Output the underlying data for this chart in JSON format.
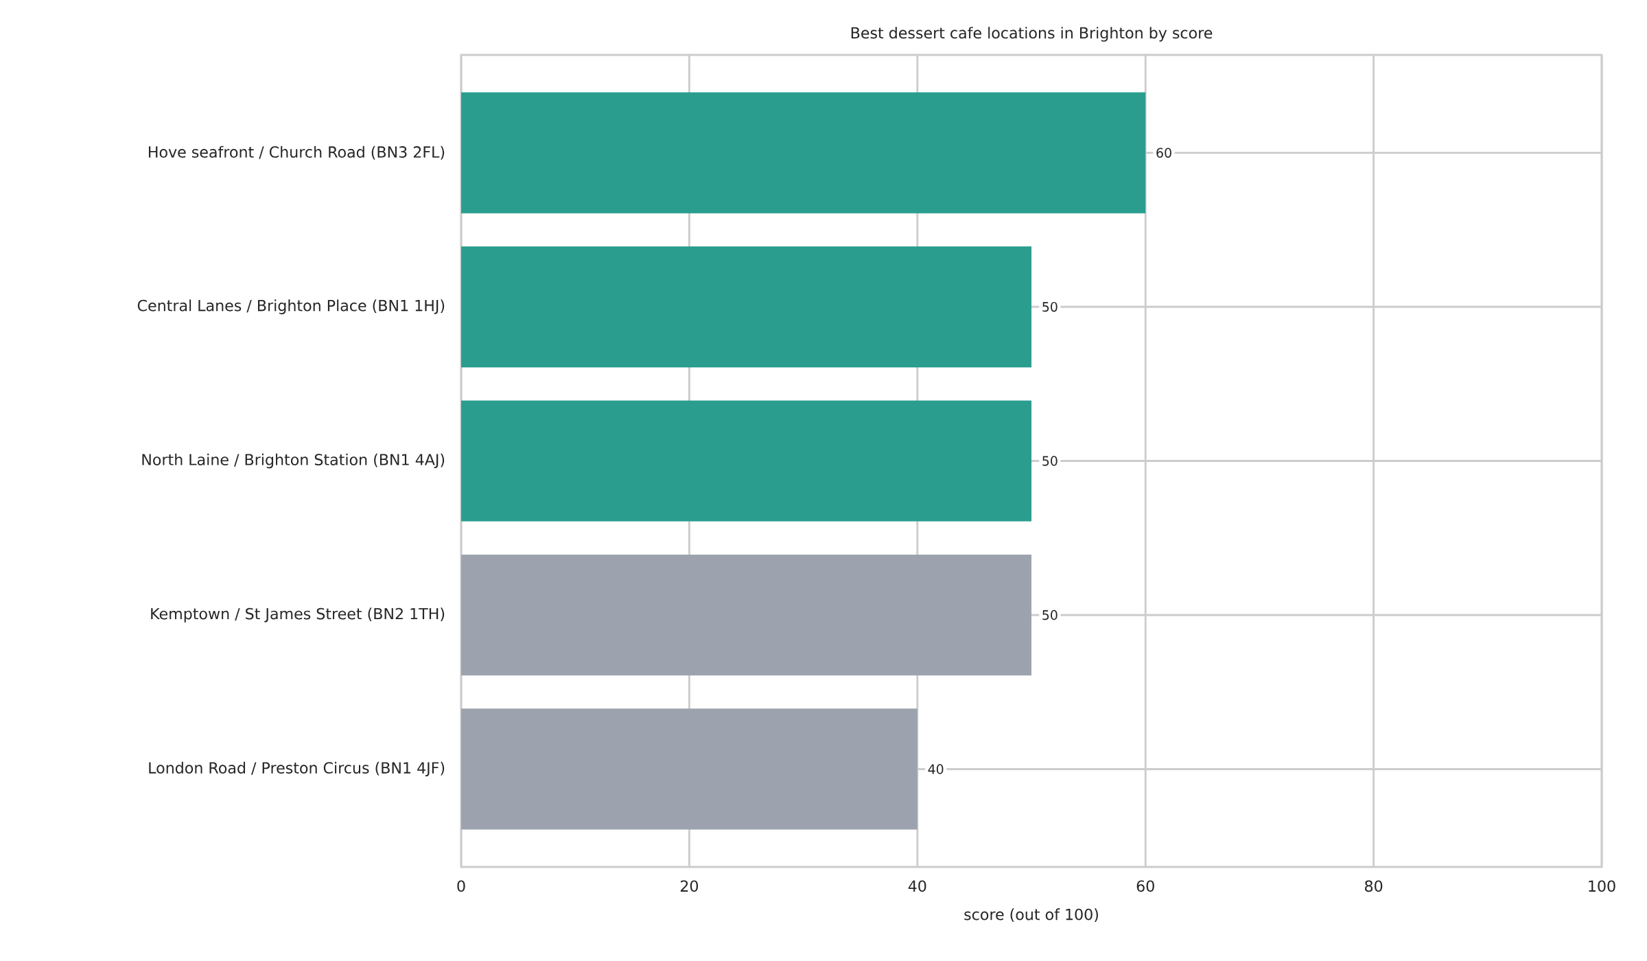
{
  "chart_data": {
    "type": "bar",
    "orientation": "horizontal",
    "title": "Best dessert cafe locations in Brighton by score",
    "xlabel": "score (out of 100)",
    "categories": [
      "Hove seafront / Church Road (BN3 2FL)",
      "Central Lanes / Brighton Place (BN1 1HJ)",
      "North Laine / Brighton Station (BN1 4AJ)",
      "Kemptown / St James Street (BN2 1TH)",
      "London Road / Preston Circus (BN1 4JF)"
    ],
    "values": [
      60,
      50,
      50,
      50,
      40
    ],
    "colors": [
      "#2a9d8f",
      "#2a9d8f",
      "#2a9d8f",
      "#9ca3af",
      "#9ca3af"
    ],
    "xlim": [
      0,
      100
    ],
    "xticks": [
      0,
      20,
      40,
      60,
      80,
      100
    ],
    "grid": true,
    "data_labels": true
  }
}
